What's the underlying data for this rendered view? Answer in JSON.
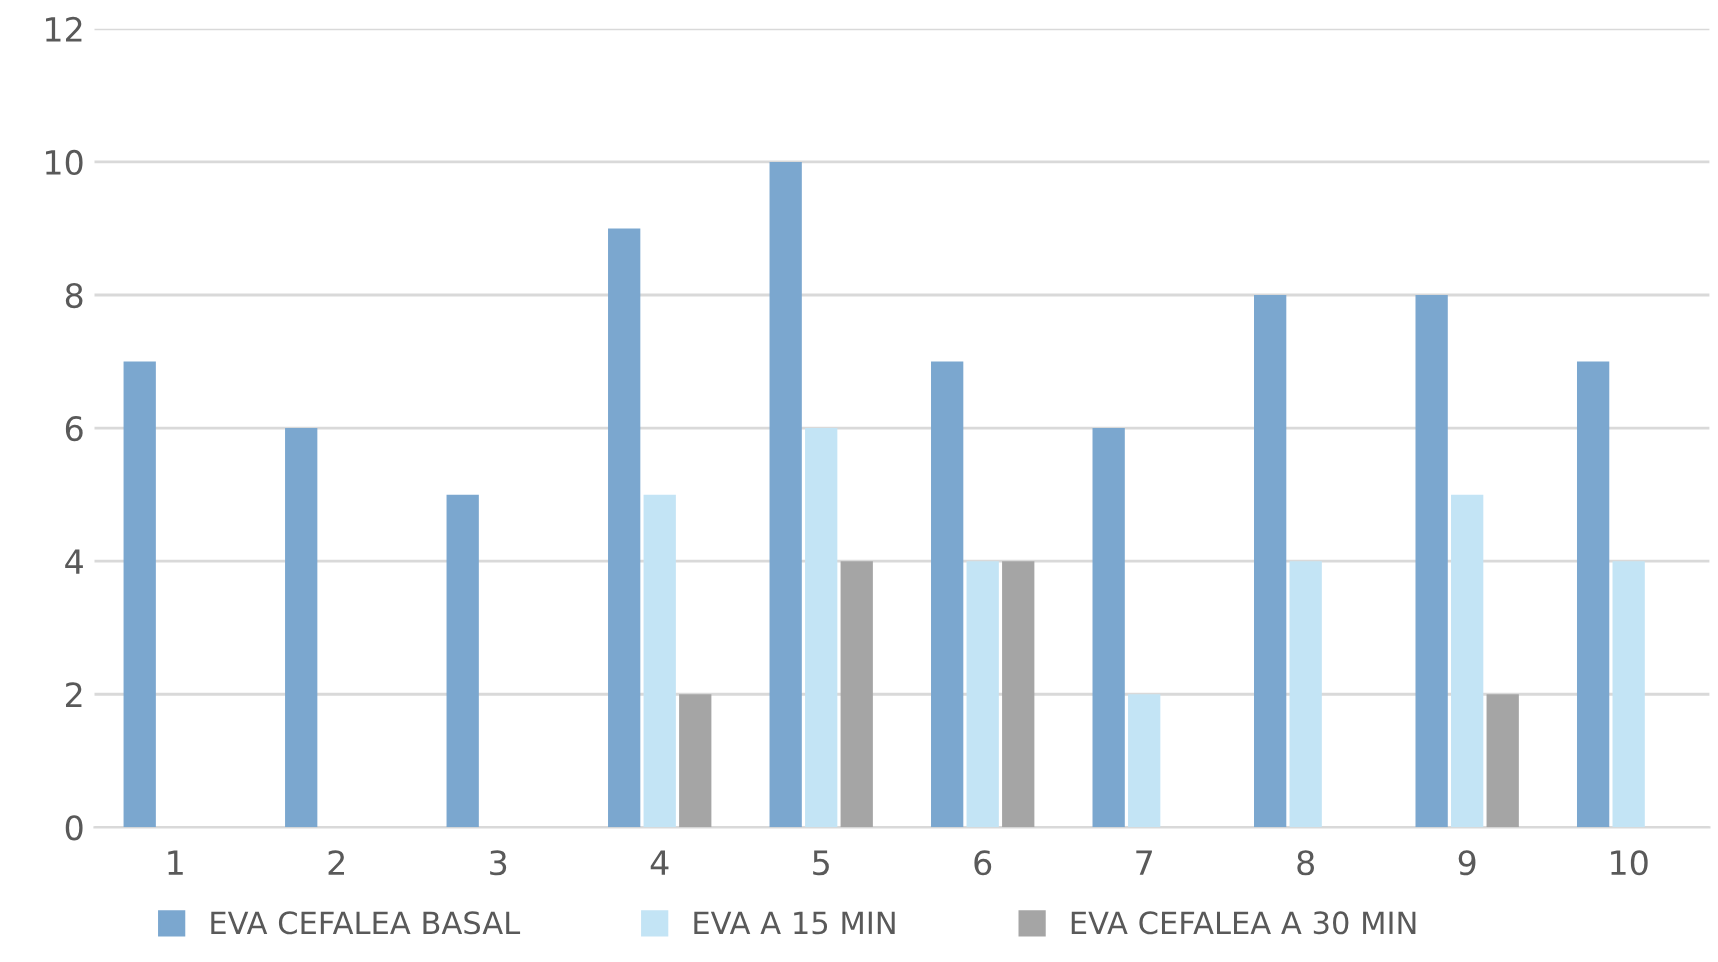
{
  "chart_data": {
    "type": "bar",
    "categories": [
      "1",
      "2",
      "3",
      "4",
      "5",
      "6",
      "7",
      "8",
      "9",
      "10"
    ],
    "series": [
      {
        "name": "EVA CEFALEA BASAL",
        "color": "#7ba7cf",
        "values": [
          7,
          6,
          5,
          9,
          10,
          7,
          6,
          8,
          8,
          7
        ]
      },
      {
        "name": "EVA A 15 MIN",
        "color": "#c3e4f5",
        "values": [
          0,
          0,
          0,
          5,
          6,
          4,
          2,
          4,
          5,
          4
        ]
      },
      {
        "name": "EVA CEFALEA A 30 MIN",
        "color": "#a5a5a5",
        "values": [
          0,
          0,
          0,
          2,
          4,
          4,
          0,
          0,
          2,
          0
        ]
      }
    ],
    "ylim": [
      0,
      12
    ],
    "yticks": [
      0,
      2,
      4,
      6,
      8,
      10,
      12
    ],
    "grid": "y",
    "legend": "bottom"
  }
}
